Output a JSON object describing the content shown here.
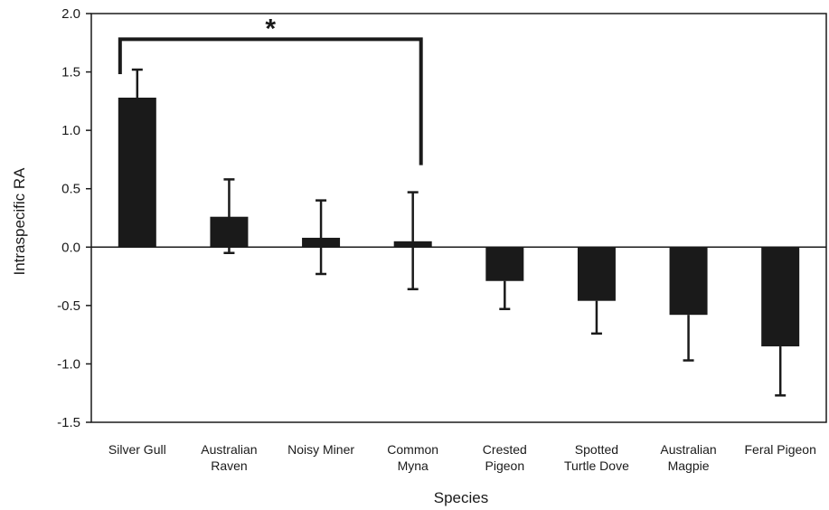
{
  "chart_data": {
    "type": "bar",
    "categories": [
      [
        "Silver Gull"
      ],
      [
        "Australian",
        "Raven"
      ],
      [
        "Noisy Miner"
      ],
      [
        "Common",
        "Myna"
      ],
      [
        "Crested",
        "Pigeon"
      ],
      [
        "Spotted",
        "Turtle Dove"
      ],
      [
        "Australian",
        "Magpie"
      ],
      [
        "Feral Pigeon"
      ]
    ],
    "values": [
      1.28,
      0.26,
      0.08,
      0.05,
      -0.29,
      -0.46,
      -0.58,
      -0.85
    ],
    "error_upper": [
      1.52,
      0.58,
      0.4,
      0.47,
      -0.29,
      -0.46,
      -0.58,
      -0.85
    ],
    "error_lower": [
      1.28,
      -0.05,
      -0.23,
      -0.36,
      -0.53,
      -0.74,
      -0.97,
      -1.27
    ],
    "ylim": [
      -1.5,
      2.0
    ],
    "y_ticks": [
      "2.0",
      "1.5",
      "1.0",
      "0.5",
      "0.0",
      "-0.5",
      "-1.0",
      "-1.5"
    ],
    "y_tick_values": [
      2.0,
      1.5,
      1.0,
      0.5,
      0.0,
      -0.5,
      -1.0,
      -1.5
    ],
    "xlabel": "Species",
    "ylabel": "Intraspecific RA",
    "significance": {
      "from_index": 0,
      "to_index": 3,
      "level": 1.78,
      "marker": "*"
    },
    "bar_color": "#1a1a1a",
    "grid": false
  }
}
